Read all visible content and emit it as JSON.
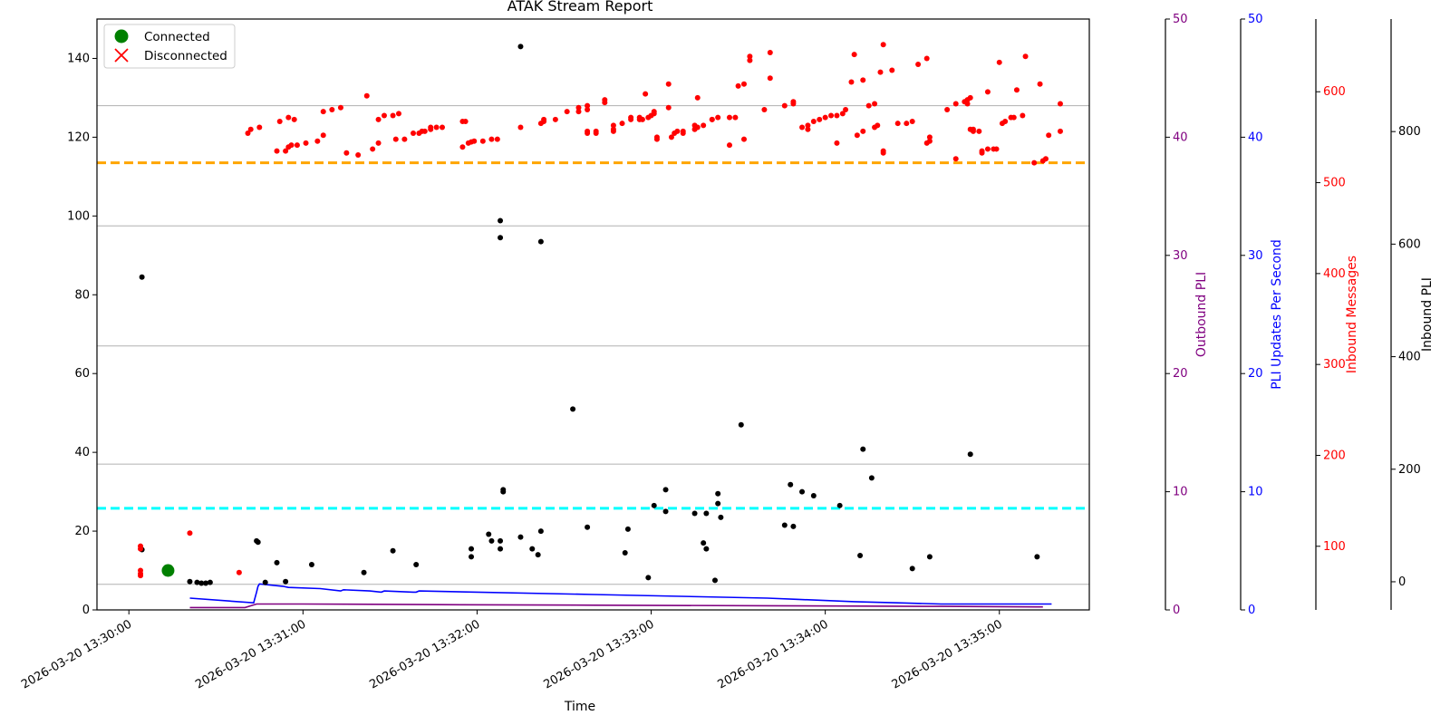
{
  "chart_data": {
    "type": "scatter",
    "title": "ATAK Stream Report",
    "xlabel": "Time",
    "x_tick_labels": [
      "2026-03-20 13:30:00",
      "2026-03-20 13:31:00",
      "2026-03-20 13:32:00",
      "2026-03-20 13:33:00",
      "2026-03-20 13:34:00",
      "2026-03-20 13:35:00"
    ],
    "xlim_seconds_from_1330": [
      -11,
      331
    ],
    "ylim": [
      0,
      150
    ],
    "y_ticks": [
      0,
      20,
      40,
      60,
      80,
      100,
      120,
      140
    ],
    "grid_lines_y": [
      6.5,
      37,
      67,
      97.5,
      128
    ],
    "legend": {
      "placement": "top-left",
      "entries": [
        {
          "label": "Connected",
          "marker": "circle",
          "color": "#008000"
        },
        {
          "label": "Disconnected",
          "marker": "x",
          "color": "#ff0000"
        }
      ]
    },
    "reference_lines": [
      {
        "y": 113.5,
        "color": "#ffa500",
        "style": "dashed"
      },
      {
        "y": 25.8,
        "color": "#00ffff",
        "style": "dashed"
      }
    ],
    "connected_events": [
      {
        "t": 13.5,
        "y": 10
      }
    ],
    "secondary_axes": [
      {
        "label": "Outbound PLI",
        "color": "#800080",
        "range": [
          0,
          50
        ],
        "ticks": [
          0,
          10,
          20,
          30,
          40,
          50
        ]
      },
      {
        "label": "PLI Updates Per Second",
        "color": "#0000ff",
        "range": [
          0,
          50
        ],
        "ticks": [
          0,
          10,
          20,
          30,
          40,
          50
        ]
      },
      {
        "label": "Inbound Messages",
        "color": "#ff0000",
        "range": [
          30,
          680
        ],
        "ticks": [
          100,
          200,
          300,
          400,
          500,
          600
        ]
      },
      {
        "label": "Inbound PLI",
        "color": "#000000",
        "range": [
          -50,
          1000
        ],
        "ticks": [
          0,
          200,
          400,
          600,
          800
        ]
      }
    ],
    "series": [
      {
        "name": "Inbound PLI",
        "kind": "points",
        "color": "#000000",
        "points": [
          [
            4.5,
            84.5
          ],
          [
            4.5,
            15.3
          ],
          [
            21,
            7.2
          ],
          [
            23.5,
            7
          ],
          [
            25,
            6.8
          ],
          [
            26.5,
            6.8
          ],
          [
            28,
            7
          ],
          [
            44,
            17.5
          ],
          [
            44.5,
            17.2
          ],
          [
            47,
            7
          ],
          [
            51,
            12
          ],
          [
            54,
            7.2
          ],
          [
            63,
            11.5
          ],
          [
            81,
            9.5
          ],
          [
            91,
            15
          ],
          [
            99,
            11.5
          ],
          [
            118,
            15.5
          ],
          [
            118,
            13.5
          ],
          [
            124,
            19.2
          ],
          [
            125,
            17.5
          ],
          [
            128,
            17.5
          ],
          [
            128,
            15.5
          ],
          [
            128,
            98.8
          ],
          [
            128,
            94.5
          ],
          [
            129,
            30.5
          ],
          [
            129,
            30
          ],
          [
            135,
            143
          ],
          [
            135,
            18.5
          ],
          [
            139,
            15.5
          ],
          [
            141,
            14
          ],
          [
            142,
            20
          ],
          [
            142,
            93.5
          ],
          [
            153,
            51
          ],
          [
            158,
            21
          ],
          [
            171,
            14.5
          ],
          [
            172,
            20.5
          ],
          [
            179,
            8.2
          ],
          [
            181,
            26.5
          ],
          [
            185,
            25
          ],
          [
            185,
            30.5
          ],
          [
            195,
            24.5
          ],
          [
            198,
            17
          ],
          [
            199,
            24.5
          ],
          [
            199,
            15.5
          ],
          [
            202,
            7.5
          ],
          [
            203,
            29.5
          ],
          [
            203,
            27
          ],
          [
            204,
            23.5
          ],
          [
            211,
            47
          ],
          [
            226,
            21.5
          ],
          [
            228,
            31.8
          ],
          [
            229,
            21.2
          ],
          [
            232,
            30
          ],
          [
            236,
            29
          ],
          [
            245,
            26.5
          ],
          [
            252,
            13.8
          ],
          [
            253,
            40.8
          ],
          [
            256,
            33.5
          ],
          [
            270,
            10.5
          ],
          [
            276,
            13.5
          ],
          [
            290,
            39.5
          ],
          [
            313,
            13.5
          ]
        ]
      },
      {
        "name": "Inbound Messages",
        "kind": "points",
        "color": "#ff0000",
        "points": [
          [
            4,
            16.2
          ],
          [
            4,
            15.5
          ],
          [
            4,
            10
          ],
          [
            4,
            9.2
          ],
          [
            4,
            8.7
          ],
          [
            21,
            19.5
          ],
          [
            38,
            9.5
          ],
          [
            41,
            121
          ],
          [
            42,
            122
          ],
          [
            45,
            122.5
          ],
          [
            51,
            116.5
          ],
          [
            52,
            124
          ],
          [
            54,
            116.5
          ],
          [
            55,
            117.5
          ],
          [
            55,
            125
          ],
          [
            56,
            118
          ],
          [
            57,
            124.5
          ],
          [
            58,
            118
          ],
          [
            61,
            118.5
          ],
          [
            65,
            119
          ],
          [
            67,
            120.5
          ],
          [
            67,
            126.5
          ],
          [
            70,
            127
          ],
          [
            73,
            127.5
          ],
          [
            75,
            116
          ],
          [
            79,
            115.5
          ],
          [
            82,
            130.5
          ],
          [
            84,
            117
          ],
          [
            86,
            118.5
          ],
          [
            86,
            124.5
          ],
          [
            88,
            125.5
          ],
          [
            91,
            125.5
          ],
          [
            92,
            119.5
          ],
          [
            93,
            126
          ],
          [
            95,
            119.5
          ],
          [
            98,
            121
          ],
          [
            100,
            121
          ],
          [
            101,
            121.5
          ],
          [
            102,
            121.5
          ],
          [
            104,
            122
          ],
          [
            104,
            122.5
          ],
          [
            106,
            122.5
          ],
          [
            108,
            122.5
          ],
          [
            115,
            117.5
          ],
          [
            115,
            124
          ],
          [
            116,
            124
          ],
          [
            117,
            118.5
          ],
          [
            118,
            118.8
          ],
          [
            119,
            119
          ],
          [
            122,
            119
          ],
          [
            125,
            119.5
          ],
          [
            127,
            119.5
          ],
          [
            135,
            122.5
          ],
          [
            142,
            123.5
          ],
          [
            143,
            124
          ],
          [
            143,
            124.5
          ],
          [
            147,
            124.5
          ],
          [
            151,
            126.5
          ],
          [
            155,
            126.5
          ],
          [
            155,
            127.5
          ],
          [
            158,
            128
          ],
          [
            158,
            127
          ],
          [
            158,
            121
          ],
          [
            158,
            121.5
          ],
          [
            161,
            121
          ],
          [
            161,
            121.5
          ],
          [
            164,
            129.5
          ],
          [
            164,
            128.8
          ],
          [
            167,
            121.5
          ],
          [
            167,
            122
          ],
          [
            167,
            123
          ],
          [
            170,
            123.5
          ],
          [
            173,
            124.5
          ],
          [
            173,
            125
          ],
          [
            176,
            125
          ],
          [
            176,
            124.5
          ],
          [
            177,
            124.5
          ],
          [
            178,
            131
          ],
          [
            179,
            125
          ],
          [
            180,
            125.5
          ],
          [
            181,
            126
          ],
          [
            181,
            126.5
          ],
          [
            182,
            120
          ],
          [
            182,
            119.5
          ],
          [
            186,
            127.5
          ],
          [
            186,
            133.5
          ],
          [
            187,
            120
          ],
          [
            188,
            121
          ],
          [
            189,
            121.5
          ],
          [
            191,
            121.5
          ],
          [
            191,
            121
          ],
          [
            195,
            123
          ],
          [
            195,
            122
          ],
          [
            196,
            130
          ],
          [
            196,
            122.5
          ],
          [
            198,
            123
          ],
          [
            201,
            124.5
          ],
          [
            201,
            124.5
          ],
          [
            203,
            125
          ],
          [
            207,
            125
          ],
          [
            207,
            118
          ],
          [
            209,
            125
          ],
          [
            210,
            133
          ],
          [
            212,
            133.5
          ],
          [
            212,
            119.5
          ],
          [
            214,
            139.5
          ],
          [
            214,
            140.5
          ],
          [
            219,
            127
          ],
          [
            221,
            141.5
          ],
          [
            221,
            135
          ],
          [
            226,
            128
          ],
          [
            229,
            128.5
          ],
          [
            229,
            129
          ],
          [
            232,
            122.5
          ],
          [
            234,
            122
          ],
          [
            234,
            123
          ],
          [
            236,
            124
          ],
          [
            238,
            124.5
          ],
          [
            240,
            125
          ],
          [
            242,
            125.5
          ],
          [
            244,
            125.5
          ],
          [
            244,
            118.5
          ],
          [
            246,
            126
          ],
          [
            247,
            127
          ],
          [
            249,
            134
          ],
          [
            250,
            141
          ],
          [
            251,
            120.5
          ],
          [
            253,
            121.5
          ],
          [
            253,
            134.5
          ],
          [
            255,
            128
          ],
          [
            257,
            128.5
          ],
          [
            257,
            122.5
          ],
          [
            258,
            123
          ],
          [
            259,
            136.5
          ],
          [
            260,
            143.5
          ],
          [
            260,
            116.5
          ],
          [
            260,
            116
          ],
          [
            263,
            137
          ],
          [
            265,
            123.5
          ],
          [
            268,
            123.5
          ],
          [
            270,
            124
          ],
          [
            272,
            138.5
          ],
          [
            275,
            140
          ],
          [
            275,
            118.5
          ],
          [
            276,
            119
          ],
          [
            276,
            120
          ],
          [
            282,
            127
          ],
          [
            285,
            128.5
          ],
          [
            285,
            114.5
          ],
          [
            288,
            129
          ],
          [
            289,
            129.5
          ],
          [
            289,
            128.5
          ],
          [
            290,
            122
          ],
          [
            290,
            130
          ],
          [
            291,
            122
          ],
          [
            291,
            121.5
          ],
          [
            293,
            121.5
          ],
          [
            294,
            116
          ],
          [
            294,
            116.5
          ],
          [
            296,
            117
          ],
          [
            296,
            131.5
          ],
          [
            298,
            117
          ],
          [
            299,
            117
          ],
          [
            300,
            139
          ],
          [
            301,
            123.5
          ],
          [
            302,
            124
          ],
          [
            304,
            125
          ],
          [
            305,
            125
          ],
          [
            306,
            132
          ],
          [
            308,
            125.5
          ],
          [
            309,
            140.5
          ],
          [
            312,
            113.5
          ],
          [
            314,
            133.5
          ],
          [
            315,
            114
          ],
          [
            316,
            114.5
          ],
          [
            317,
            120.5
          ],
          [
            321,
            128.5
          ],
          [
            321,
            121.5
          ]
        ]
      }
    ],
    "lines": [
      {
        "name": "PLI Updates Per Second",
        "color": "#0000ff",
        "points": [
          [
            21,
            1.0
          ],
          [
            43,
            0.6
          ],
          [
            44,
            1.5
          ],
          [
            44.5,
            2.0
          ],
          [
            45,
            2.2
          ],
          [
            53,
            2.0
          ],
          [
            55,
            1.9
          ],
          [
            66,
            1.8
          ],
          [
            73,
            1.6
          ],
          [
            74,
            1.7
          ],
          [
            83,
            1.6
          ],
          [
            87,
            1.5
          ],
          [
            88,
            1.6
          ],
          [
            98,
            1.5
          ],
          [
            99,
            1.5
          ],
          [
            100,
            1.6
          ],
          [
            160,
            1.3
          ],
          [
            220,
            1.0
          ],
          [
            230,
            0.9
          ],
          [
            250,
            0.7
          ],
          [
            265,
            0.6
          ],
          [
            280,
            0.5
          ],
          [
            300,
            0.5
          ],
          [
            310,
            0.5
          ],
          [
            318,
            0.5
          ]
        ]
      },
      {
        "name": "Outbound PLI",
        "color": "#800080",
        "points": [
          [
            21,
            0.2
          ],
          [
            40,
            0.2
          ],
          [
            44,
            0.5
          ],
          [
            60,
            0.5
          ],
          [
            100,
            0.45
          ],
          [
            160,
            0.4
          ],
          [
            220,
            0.35
          ],
          [
            280,
            0.3
          ],
          [
            315,
            0.25
          ]
        ]
      }
    ]
  }
}
